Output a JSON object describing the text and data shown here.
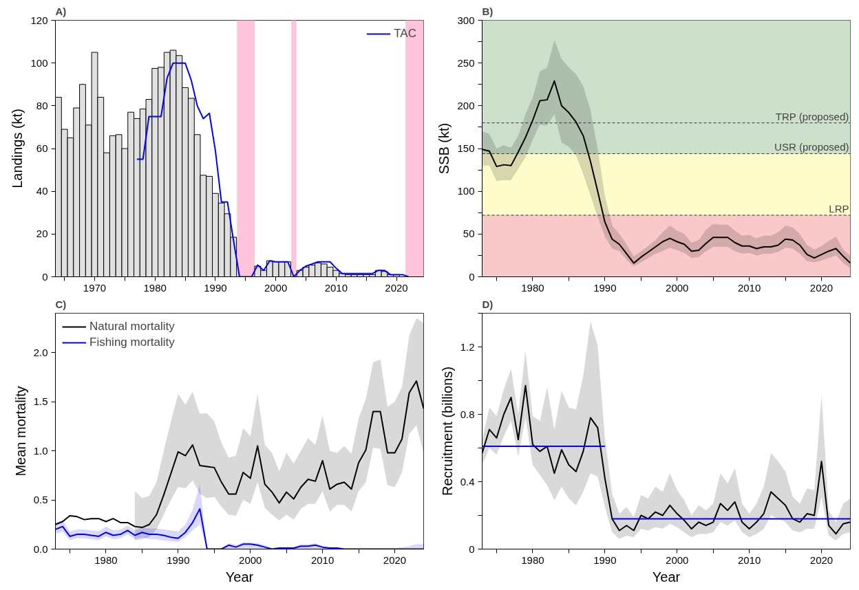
{
  "chart_data": [
    {
      "type": "bar",
      "title": "A)",
      "ylabel": "Landings (kt)",
      "xlim": [
        1963.5,
        2024.5
      ],
      "ylim": [
        0,
        120
      ],
      "xticks": [
        {
          "value": 1965,
          "label": null
        },
        1970,
        {
          "value": 1975,
          "label": null
        },
        1980,
        {
          "value": 1985,
          "label": null
        },
        1990,
        {
          "value": 1995,
          "label": null
        },
        2000,
        {
          "value": 2005,
          "label": null
        },
        2010,
        {
          "value": 2015,
          "label": null
        },
        2020
      ],
      "yticks": [
        0,
        20,
        40,
        60,
        80,
        100,
        120
      ],
      "legend": "top right",
      "bands": [
        {
          "axis": "x",
          "from": 1993.6,
          "to": 1996.5,
          "color": "#ffc4dc"
        },
        {
          "axis": "x",
          "from": 2002.6,
          "to": 2003.4,
          "color": "#ffc4dc"
        },
        {
          "axis": "x",
          "from": 2021.5,
          "to": 2024.5,
          "color": "#ffc4dc"
        }
      ],
      "series": [
        {
          "type": "bar",
          "color": "#e0e0e0",
          "x": [
            1964,
            1965,
            1966,
            1967,
            1968,
            1969,
            1970,
            1971,
            1972,
            1973,
            1974,
            1975,
            1976,
            1977,
            1978,
            1979,
            1980,
            1981,
            1982,
            1983,
            1984,
            1985,
            1986,
            1987,
            1988,
            1989,
            1990,
            1991,
            1992,
            1993,
            1994,
            1995,
            1996,
            1997,
            1998,
            1999,
            2000,
            2001,
            2002,
            2003,
            2004,
            2005,
            2006,
            2007,
            2008,
            2009,
            2010,
            2011,
            2012,
            2013,
            2014,
            2015,
            2016,
            2017,
            2018,
            2019,
            2020,
            2021,
            2022,
            2023
          ],
          "values": [
            84,
            69,
            65,
            79,
            90,
            71,
            105,
            84,
            58,
            66,
            66.5,
            60,
            77,
            74,
            78.5,
            83,
            97.5,
            98,
            105,
            106,
            103.5,
            88.5,
            83.5,
            66.5,
            47.5,
            47,
            39,
            34.5,
            29.5,
            18.5,
            0,
            0,
            0,
            5,
            3,
            7.5,
            7,
            7,
            7,
            0,
            3,
            4.5,
            5.5,
            6.5,
            6,
            4.5,
            3,
            1.5,
            1,
            1,
            1,
            1,
            1,
            3,
            2.5,
            1,
            1,
            null,
            0,
            0
          ]
        },
        {
          "type": "line",
          "name": "TAC",
          "color": "#0000ff",
          "x": [
            1977,
            1978,
            1979,
            1980,
            1981,
            1982,
            1983,
            1984,
            1985,
            1986,
            1987,
            1988,
            1989,
            1990,
            1991,
            1992,
            1993,
            1994,
            1995,
            1996,
            1997,
            1998,
            1999,
            2000,
            2001,
            2002,
            2003,
            2004,
            2005,
            2006,
            2007,
            2008,
            2009,
            2010,
            2011,
            2012,
            2013,
            2014,
            2015,
            2016,
            2017,
            2018,
            2019,
            2020,
            2021,
            2022
          ],
          "values": [
            55,
            55,
            75,
            75,
            75,
            93,
            100,
            100,
            100,
            92,
            80,
            74,
            76.5,
            59,
            35,
            35,
            17,
            0,
            0,
            0,
            5.5,
            3,
            7.5,
            7,
            7,
            7,
            0,
            3,
            5,
            6,
            7,
            7,
            7,
            4,
            1.5,
            1.5,
            1.5,
            1.5,
            1.5,
            1.5,
            3,
            3,
            1,
            1,
            1,
            0
          ]
        }
      ]
    },
    {
      "type": "line",
      "title": "B)",
      "ylabel": "SSB (kt)",
      "xlim": [
        1973,
        2024
      ],
      "ylim": [
        0,
        300
      ],
      "xticks": [
        {
          "value": 1975,
          "label": null
        },
        1980,
        {
          "value": 1985,
          "label": null
        },
        1990,
        {
          "value": 1995,
          "label": null
        },
        2000,
        {
          "value": 2005,
          "label": null
        },
        2010,
        {
          "value": 2015,
          "label": null
        },
        2020
      ],
      "yticks": [
        0,
        {
          "value": 25,
          "label": null
        },
        50,
        {
          "value": 75,
          "label": null
        },
        100,
        {
          "value": 125,
          "label": null
        },
        150,
        {
          "value": 175,
          "label": null
        },
        200,
        {
          "value": 225,
          "label": null
        },
        250,
        {
          "value": 275,
          "label": null
        },
        300
      ],
      "bands": [
        {
          "axis": "y",
          "from": 144,
          "to": 300,
          "color": "#cde0cb"
        },
        {
          "axis": "y",
          "from": 72,
          "to": 144,
          "color": "#fdfcca"
        },
        {
          "axis": "y",
          "from": 0,
          "to": 72,
          "color": "#f9c8c8"
        }
      ],
      "ref_lines": [
        {
          "axis": "y",
          "value": 180,
          "label": "TRP (proposed)",
          "line_style": "dashed"
        },
        {
          "axis": "y",
          "value": 144,
          "label": "USR (proposed)",
          "line_style": "dashed"
        },
        {
          "axis": "y",
          "value": 72,
          "label": "LRP",
          "line_style": "dashed"
        }
      ],
      "x": [
        1973,
        1974,
        1975,
        1976,
        1977,
        1978,
        1979,
        1980,
        1981,
        1982,
        1983,
        1984,
        1985,
        1986,
        1987,
        1988,
        1989,
        1990,
        1991,
        1992,
        1993,
        1994,
        1995,
        1996,
        1997,
        1998,
        1999,
        2000,
        2001,
        2002,
        2003,
        2004,
        2005,
        2006,
        2007,
        2008,
        2009,
        2010,
        2011,
        2012,
        2013,
        2014,
        2015,
        2016,
        2017,
        2018,
        2019,
        2020,
        2021,
        2022,
        2023,
        2024
      ],
      "series": [
        {
          "color": "#000000",
          "values": [
            149,
            147,
            129,
            131,
            130,
            146,
            163,
            183,
            206,
            207,
            229,
            200,
            192,
            181,
            165,
            135,
            100,
            64,
            44,
            38,
            27,
            16,
            23,
            29,
            35,
            41,
            45,
            41,
            38,
            30,
            31,
            39,
            46,
            46,
            46,
            40,
            36,
            36,
            33,
            35,
            35,
            37,
            44,
            43,
            37,
            26,
            22,
            26,
            30,
            33,
            24,
            16
          ],
          "lower": [
            130,
            130,
            112,
            113,
            113,
            126,
            140,
            160,
            178,
            177,
            190,
            157,
            152,
            142,
            120,
            95,
            70,
            47,
            33,
            30,
            20,
            12,
            17,
            22,
            27,
            30,
            34,
            31,
            28,
            22,
            23,
            30,
            35,
            35,
            35,
            30,
            27,
            28,
            25,
            27,
            27,
            29,
            34,
            33,
            27,
            18,
            17,
            19,
            22,
            25,
            16,
            10
          ],
          "upper": [
            170,
            167,
            150,
            154,
            151,
            165,
            190,
            210,
            240,
            245,
            277,
            255,
            245,
            237,
            223,
            195,
            150,
            95,
            60,
            50,
            38,
            24,
            30,
            36,
            43,
            52,
            60,
            54,
            50,
            40,
            43,
            55,
            62,
            61,
            61,
            54,
            48,
            49,
            45,
            48,
            48,
            52,
            60,
            58,
            50,
            37,
            32,
            36,
            42,
            47,
            32,
            24
          ]
        }
      ]
    },
    {
      "type": "line",
      "title": "C)",
      "xlabel": "Year",
      "ylabel": "Mean mortality",
      "xlim": [
        1973,
        2024
      ],
      "ylim": [
        0,
        2.4
      ],
      "xticks": [
        {
          "value": 1975,
          "label": null
        },
        1980,
        {
          "value": 1985,
          "label": null
        },
        1990,
        {
          "value": 1995,
          "label": null
        },
        2000,
        {
          "value": 2005,
          "label": null
        },
        2010,
        {
          "value": 2015,
          "label": null
        },
        2020
      ],
      "yticks": [
        {
          "value": 0,
          "label": "0.0"
        },
        0.5,
        {
          "value": 1,
          "label": "1.0"
        },
        1.5,
        {
          "value": 2,
          "label": "2.0"
        }
      ],
      "legend": "top left",
      "x": [
        1973,
        1974,
        1975,
        1976,
        1977,
        1978,
        1979,
        1980,
        1981,
        1982,
        1983,
        1984,
        1985,
        1986,
        1987,
        1988,
        1989,
        1990,
        1991,
        1992,
        1993,
        1994,
        1995,
        1996,
        1997,
        1998,
        1999,
        2000,
        2001,
        2002,
        2003,
        2004,
        2005,
        2006,
        2007,
        2008,
        2009,
        2010,
        2011,
        2012,
        2013,
        2014,
        2015,
        2016,
        2017,
        2018,
        2019,
        2020,
        2021,
        2022,
        2023,
        2024
      ],
      "series": [
        {
          "name": "Natural mortality",
          "color": "#000000",
          "values": [
            0.25,
            0.28,
            0.34,
            0.33,
            0.3,
            0.31,
            0.31,
            0.28,
            0.31,
            0.27,
            0.27,
            0.23,
            0.22,
            0.25,
            0.35,
            0.55,
            0.77,
            0.99,
            0.95,
            1.06,
            0.85,
            0.84,
            0.83,
            0.68,
            0.56,
            0.56,
            0.78,
            0.72,
            1.05,
            0.66,
            0.58,
            0.47,
            0.58,
            0.51,
            0.63,
            0.71,
            0.69,
            0.9,
            0.61,
            0.66,
            0.68,
            0.61,
            0.88,
            1.01,
            1.4,
            1.4,
            0.98,
            0.98,
            1.12,
            1.59,
            1.71,
            1.43
          ],
          "lower": [
            null,
            null,
            null,
            null,
            null,
            null,
            null,
            null,
            null,
            null,
            null,
            0.09,
            0.1,
            0.12,
            0.2,
            0.35,
            0.5,
            0.63,
            0.62,
            0.7,
            0.56,
            0.52,
            0.53,
            0.43,
            0.35,
            0.34,
            0.5,
            0.46,
            0.68,
            0.42,
            0.35,
            0.29,
            0.35,
            0.3,
            0.41,
            0.46,
            0.46,
            0.59,
            0.38,
            0.45,
            0.45,
            0.38,
            0.59,
            0.68,
            1.03,
            1.02,
            0.65,
            0.63,
            0.78,
            1.17,
            1.26,
            0.97
          ],
          "upper": [
            null,
            null,
            null,
            null,
            null,
            null,
            null,
            null,
            null,
            null,
            null,
            0.59,
            0.52,
            0.54,
            0.68,
            1.0,
            1.3,
            1.58,
            1.47,
            1.6,
            1.38,
            1.38,
            1.3,
            1.08,
            0.93,
            0.95,
            1.23,
            1.15,
            1.58,
            1.06,
            0.98,
            0.79,
            0.98,
            0.87,
            1.0,
            1.13,
            1.06,
            1.36,
            1.0,
            0.98,
            1.05,
            0.97,
            1.33,
            1.53,
            1.9,
            1.93,
            1.45,
            1.5,
            1.65,
            2.17,
            2.35,
            2.3
          ]
        },
        {
          "name": "Fishing mortality",
          "color": "#0000ff",
          "values": [
            0.2,
            0.23,
            0.13,
            0.15,
            0.15,
            0.14,
            0.13,
            0.17,
            0.14,
            0.15,
            0.19,
            0.14,
            0.17,
            0.15,
            0.15,
            0.14,
            0.12,
            0.11,
            0.17,
            0.27,
            0.41,
            0,
            0,
            0,
            0.04,
            0.02,
            0.05,
            0.05,
            0.04,
            0.02,
            0,
            0.01,
            0.01,
            0.01,
            0.03,
            0.03,
            0.04,
            0.02,
            0.01,
            0.01,
            0,
            0,
            0,
            0,
            0,
            0,
            0,
            0,
            0,
            0,
            0,
            0
          ],
          "lower": [
            0.15,
            0.18,
            0.09,
            0.11,
            0.11,
            0.1,
            0.09,
            0.13,
            0.1,
            0.11,
            0.15,
            0.1,
            0.12,
            0.1,
            0.1,
            0.09,
            0.08,
            0.07,
            0.12,
            0.19,
            0.25,
            0,
            0,
            0,
            0,
            0,
            0,
            0,
            0,
            0,
            0,
            0,
            0,
            0,
            0,
            0,
            0,
            0,
            0,
            0,
            0,
            0,
            0,
            0,
            0,
            0,
            0,
            0,
            0,
            0,
            0,
            0
          ],
          "upper": [
            0.27,
            0.29,
            0.18,
            0.2,
            0.2,
            0.19,
            0.18,
            0.23,
            0.19,
            0.2,
            0.24,
            0.19,
            0.22,
            0.21,
            0.21,
            0.2,
            0.19,
            0.18,
            0.25,
            0.4,
            0.66,
            0.01,
            0.01,
            0.01,
            0.06,
            0.04,
            0.07,
            0.07,
            0.06,
            0.04,
            0.01,
            0.02,
            0.02,
            0.02,
            0.05,
            0.05,
            0.06,
            0.03,
            0.02,
            0.02,
            0.01,
            0.01,
            0.01,
            0.01,
            0.01,
            0.01,
            0.01,
            0.01,
            0.02,
            0.03,
            0.05,
            0.05
          ]
        }
      ]
    },
    {
      "type": "line",
      "title": "D)",
      "xlabel": "Year",
      "ylabel": "Recruitment (billions)",
      "xlim": [
        1973,
        2024
      ],
      "ylim": [
        0,
        1.4
      ],
      "xticks": [
        {
          "value": 1975,
          "label": null
        },
        1980,
        {
          "value": 1985,
          "label": null
        },
        1990,
        {
          "value": 1995,
          "label": null
        },
        2000,
        {
          "value": 2005,
          "label": null
        },
        2010,
        {
          "value": 2015,
          "label": null
        },
        2020
      ],
      "yticks": [
        0,
        {
          "value": 0.2,
          "label": null
        },
        0.4,
        {
          "value": 0.6,
          "label": null
        },
        0.8,
        {
          "value": 1.0,
          "label": null
        },
        1.2,
        {
          "value": 1.4,
          "label": null
        }
      ],
      "x": [
        1973,
        1974,
        1975,
        1976,
        1977,
        1978,
        1979,
        1980,
        1981,
        1982,
        1983,
        1984,
        1985,
        1986,
        1987,
        1988,
        1989,
        1990,
        1991,
        1992,
        1993,
        1994,
        1995,
        1996,
        1997,
        1998,
        1999,
        2000,
        2001,
        2002,
        2003,
        2004,
        2005,
        2006,
        2007,
        2008,
        2009,
        2010,
        2011,
        2012,
        2013,
        2014,
        2015,
        2016,
        2017,
        2018,
        2019,
        2020,
        2021,
        2022,
        2023,
        2024
      ],
      "series": [
        {
          "color": "#000000",
          "values": [
            0.57,
            0.71,
            0.66,
            0.8,
            0.9,
            0.65,
            0.97,
            0.62,
            0.58,
            0.61,
            0.45,
            0.59,
            0.5,
            0.46,
            0.58,
            0.78,
            0.72,
            0.42,
            0.18,
            0.11,
            0.14,
            0.11,
            0.2,
            0.18,
            0.22,
            0.2,
            0.26,
            0.21,
            0.17,
            0.12,
            0.16,
            0.14,
            0.16,
            0.27,
            0.23,
            0.28,
            0.16,
            0.12,
            0.16,
            0.21,
            0.34,
            0.3,
            0.26,
            0.18,
            0.16,
            0.21,
            0.2,
            0.52,
            0.14,
            0.09,
            0.15,
            0.16
          ],
          "lower": [
            0.5,
            0.6,
            0.56,
            0.67,
            0.76,
            0.55,
            0.78,
            0.5,
            0.44,
            0.38,
            0.29,
            0.37,
            0.3,
            0.26,
            0.34,
            0.45,
            0.43,
            0.25,
            0.1,
            0.06,
            0.08,
            0.07,
            0.12,
            0.11,
            0.13,
            0.12,
            0.15,
            0.13,
            0.1,
            0.07,
            0.09,
            0.09,
            0.1,
            0.16,
            0.14,
            0.17,
            0.1,
            0.07,
            0.09,
            0.12,
            0.2,
            0.18,
            0.16,
            0.11,
            0.1,
            0.12,
            0.12,
            0.31,
            0.08,
            0.05,
            0.09,
            0.1
          ],
          "upper": [
            0.65,
            0.84,
            0.79,
            0.95,
            1.07,
            0.8,
            1.18,
            0.79,
            0.76,
            0.96,
            0.71,
            0.94,
            0.84,
            0.83,
            1.03,
            1.35,
            1.21,
            0.66,
            0.33,
            0.21,
            0.25,
            0.19,
            0.32,
            0.3,
            0.37,
            0.34,
            0.45,
            0.35,
            0.29,
            0.2,
            0.26,
            0.23,
            0.27,
            0.45,
            0.39,
            0.48,
            0.27,
            0.21,
            0.27,
            0.37,
            0.57,
            0.52,
            0.46,
            0.31,
            0.27,
            0.36,
            0.35,
            0.91,
            0.23,
            0.16,
            0.27,
            0.3
          ]
        },
        {
          "color": "#0000ff",
          "x": [
            1973,
            1990
          ],
          "values": [
            0.61,
            0.61
          ]
        },
        {
          "color": "#0000ff",
          "x": [
            1991,
            2024
          ],
          "values": [
            0.18,
            0.18
          ]
        }
      ]
    }
  ]
}
